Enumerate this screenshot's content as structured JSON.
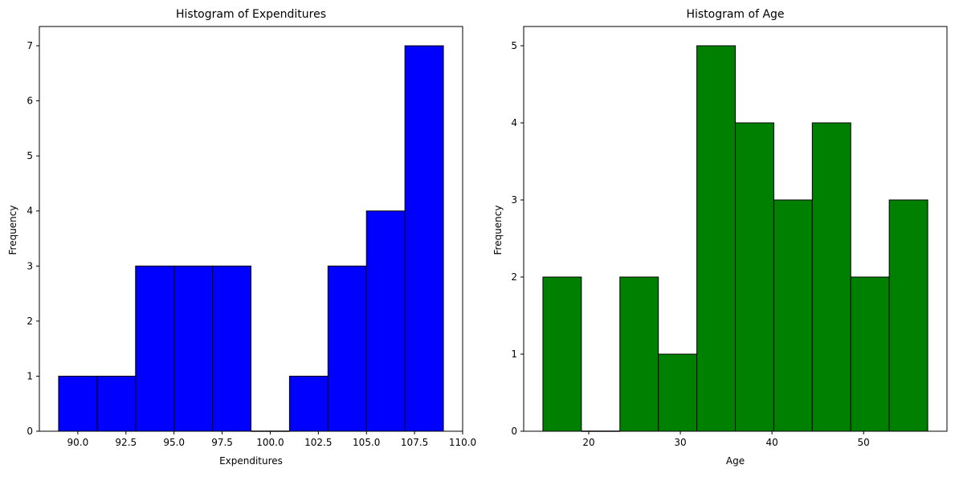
{
  "chart_data": [
    {
      "type": "bar",
      "title": "Histogram of Expenditures",
      "xlabel": "Expenditures",
      "ylabel": "Frequency",
      "bin_edges": [
        89,
        91,
        93,
        95,
        97,
        99,
        101,
        103,
        105,
        107,
        109
      ],
      "values": [
        1,
        1,
        3,
        3,
        3,
        0,
        1,
        3,
        4,
        7
      ],
      "xlim": [
        88.0,
        110.0
      ],
      "ylim": [
        0,
        7.35
      ],
      "xticks": [
        90.0,
        92.5,
        95.0,
        97.5,
        100.0,
        102.5,
        105.0,
        107.5,
        110.0
      ],
      "xtick_labels": [
        "90.0",
        "92.5",
        "95.0",
        "97.5",
        "100.0",
        "102.5",
        "105.0",
        "107.5",
        "110.0"
      ],
      "yticks": [
        0,
        1,
        2,
        3,
        4,
        5,
        6,
        7
      ],
      "ytick_labels": [
        "0",
        "1",
        "2",
        "3",
        "4",
        "5",
        "6",
        "7"
      ],
      "color": "#0000ff",
      "edge_color": "#000000",
      "grid": false
    },
    {
      "type": "bar",
      "title": "Histogram of Age",
      "xlabel": "Age",
      "ylabel": "Frequency",
      "bin_edges": [
        15,
        19.2,
        23.4,
        27.6,
        31.8,
        36,
        40.2,
        44.4,
        48.6,
        52.8,
        57
      ],
      "values": [
        2,
        0,
        2,
        1,
        5,
        4,
        3,
        4,
        2,
        3
      ],
      "xlim": [
        12.9,
        59.1
      ],
      "ylim": [
        0,
        5.25
      ],
      "xticks": [
        20,
        30,
        40,
        50
      ],
      "xtick_labels": [
        "20",
        "30",
        "40",
        "50"
      ],
      "yticks": [
        0,
        1,
        2,
        3,
        4,
        5
      ],
      "ytick_labels": [
        "0",
        "1",
        "2",
        "3",
        "4",
        "5"
      ],
      "color": "#008000",
      "edge_color": "#000000",
      "grid": false
    }
  ]
}
